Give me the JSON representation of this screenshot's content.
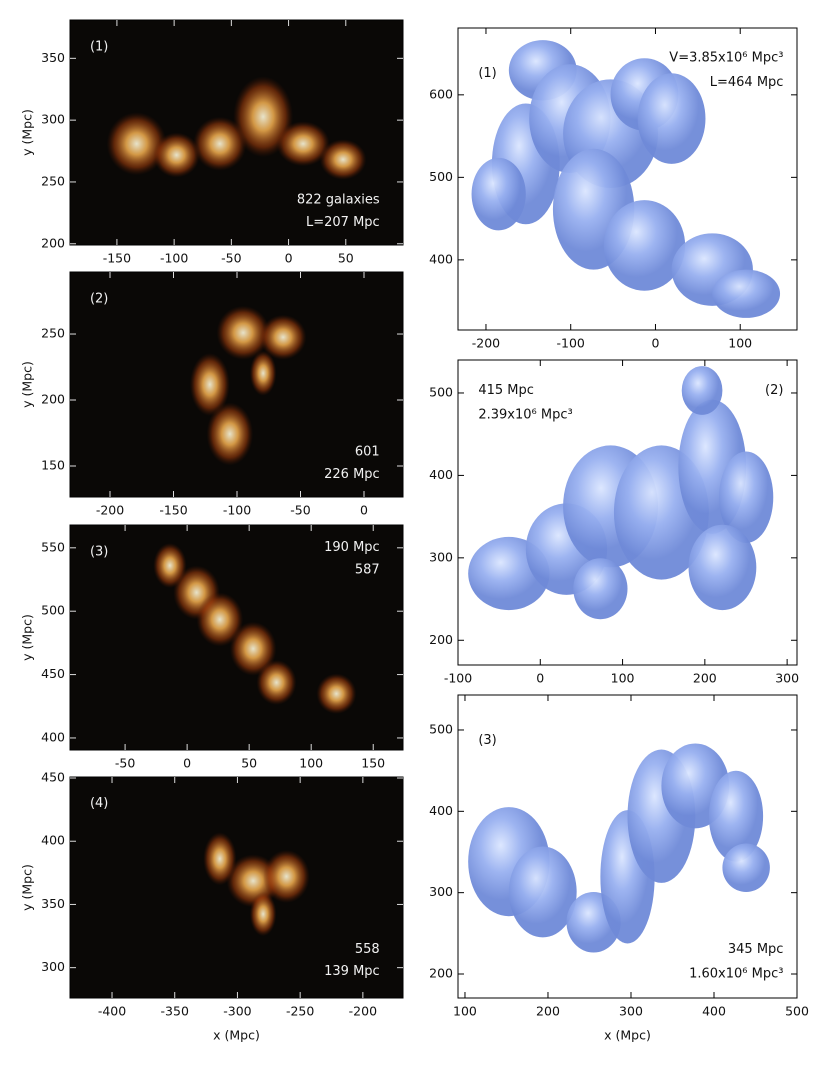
{
  "panels": [
    {
      "xlim": [
        -191,
        100
      ],
      "ylim": [
        199,
        381
      ],
      "xticks": [
        -150,
        -100,
        -50,
        0,
        50
      ],
      "yticks": [
        200,
        250,
        300,
        350
      ],
      "ylabel": "y (Mpc)",
      "annotations": [
        "(1)",
        "822 galaxies",
        "L=207 Mpc"
      ]
    },
    {
      "xlim": [
        -231.5,
        30.7
      ],
      "ylim": [
        126.5,
        297
      ],
      "xticks": [
        -200,
        -150,
        -100,
        -50,
        0
      ],
      "yticks": [
        150,
        200,
        250
      ],
      "ylabel": "y (Mpc)",
      "annotations": [
        "(2)",
        "601",
        "226 Mpc"
      ]
    },
    {
      "xlim": [
        -94.4,
        174
      ],
      "ylim": [
        390.5,
        568
      ],
      "xticks": [
        -50,
        0,
        50,
        100,
        150
      ],
      "yticks": [
        400,
        450,
        500,
        550
      ],
      "ylabel": "y (Mpc)",
      "annotations": [
        "(3)",
        "190 Mpc",
        "587"
      ]
    },
    {
      "xlim": [
        -433.5,
        -168
      ],
      "ylim": [
        276,
        450.8
      ],
      "xticks": [
        -400,
        -350,
        -300,
        -250,
        -200
      ],
      "yticks": [
        300,
        350,
        400,
        450
      ],
      "ylabel": "y (Mpc)",
      "xlabel": "x (Mpc)",
      "annotations": [
        "(4)",
        "558",
        "139 Mpc"
      ]
    },
    {
      "xlim": [
        -233,
        167
      ],
      "ylim": [
        315,
        681
      ],
      "xticks": [
        -200,
        -100,
        0,
        100
      ],
      "yticks": [
        400,
        500,
        600
      ],
      "annotations": [
        "(1)",
        "V=3.85x10⁶ Mpc³",
        "L=464 Mpc"
      ]
    },
    {
      "xlim": [
        -100,
        312
      ],
      "ylim": [
        170,
        540
      ],
      "xticks": [
        -100,
        0,
        100,
        200,
        300
      ],
      "yticks": [
        200,
        300,
        400,
        500
      ],
      "annotations": [
        "415 Mpc",
        "2.39x10⁶ Mpc³",
        "(2)"
      ]
    },
    {
      "xlim": [
        91.6,
        500
      ],
      "ylim": [
        170.5,
        543
      ],
      "xticks": [
        100,
        200,
        300,
        400,
        500
      ],
      "yticks": [
        200,
        300,
        400,
        500
      ],
      "xlabel": "x (Mpc)",
      "annotations": [
        "(3)",
        "345 Mpc",
        "1.60x10⁶ Mpc³"
      ]
    }
  ]
}
